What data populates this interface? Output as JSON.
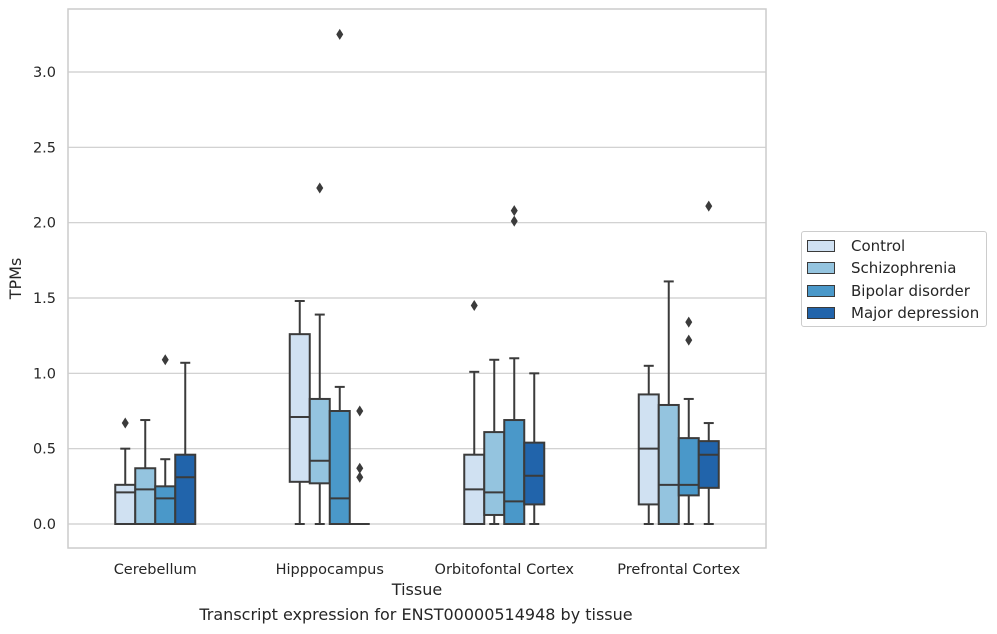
{
  "chart_data": {
    "type": "box",
    "xlabel": "Tissue",
    "ylabel": "TPMs",
    "caption": "Transcript expression for ENST00000514948 by tissue",
    "ylim": [
      -0.16,
      3.42
    ],
    "yticks": [
      0.0,
      0.5,
      1.0,
      1.5,
      2.0,
      2.5,
      3.0
    ],
    "ytick_labels": [
      "0.0",
      "0.5",
      "1.0",
      "1.5",
      "2.0",
      "2.5",
      "3.0"
    ],
    "grid": "horizontal",
    "legend_position": "right",
    "categories": [
      "Cerebellum",
      "Hipppocampus",
      "Orbitofontal Cortex",
      "Prefrontal Cortex"
    ],
    "series": [
      {
        "name": "Control",
        "color": "#d0e1f2",
        "boxes": [
          {
            "whisker_low": 0.0,
            "q1": 0.0,
            "median": 0.21,
            "q3": 0.26,
            "whisker_high": 0.5,
            "outliers": [
              0.67
            ]
          },
          {
            "whisker_low": 0.0,
            "q1": 0.28,
            "median": 0.71,
            "q3": 1.26,
            "whisker_high": 1.48,
            "outliers": []
          },
          {
            "whisker_low": 0.0,
            "q1": 0.0,
            "median": 0.23,
            "q3": 0.46,
            "whisker_high": 1.01,
            "outliers": [
              1.45
            ]
          },
          {
            "whisker_low": 0.0,
            "q1": 0.13,
            "median": 0.5,
            "q3": 0.86,
            "whisker_high": 1.05,
            "outliers": []
          }
        ]
      },
      {
        "name": "Schizophrenia",
        "color": "#94c4df",
        "boxes": [
          {
            "whisker_low": 0.0,
            "q1": 0.0,
            "median": 0.23,
            "q3": 0.37,
            "whisker_high": 0.69,
            "outliers": []
          },
          {
            "whisker_low": 0.0,
            "q1": 0.27,
            "median": 0.42,
            "q3": 0.83,
            "whisker_high": 1.39,
            "outliers": [
              2.23
            ]
          },
          {
            "whisker_low": 0.0,
            "q1": 0.06,
            "median": 0.21,
            "q3": 0.61,
            "whisker_high": 1.09,
            "outliers": []
          },
          {
            "whisker_low": 0.0,
            "q1": 0.0,
            "median": 0.26,
            "q3": 0.79,
            "whisker_high": 1.61,
            "outliers": []
          }
        ]
      },
      {
        "name": "Bipolar disorder",
        "color": "#4a98c9",
        "boxes": [
          {
            "whisker_low": 0.0,
            "q1": 0.0,
            "median": 0.17,
            "q3": 0.25,
            "whisker_high": 0.43,
            "outliers": [
              1.09
            ]
          },
          {
            "whisker_low": 0.0,
            "q1": 0.0,
            "median": 0.17,
            "q3": 0.75,
            "whisker_high": 0.91,
            "outliers": [
              3.25
            ]
          },
          {
            "whisker_low": 0.0,
            "q1": 0.0,
            "median": 0.15,
            "q3": 0.69,
            "whisker_high": 1.1,
            "outliers": [
              2.01,
              2.08
            ]
          },
          {
            "whisker_low": 0.0,
            "q1": 0.19,
            "median": 0.26,
            "q3": 0.57,
            "whisker_high": 0.83,
            "outliers": [
              1.22,
              1.34
            ]
          }
        ]
      },
      {
        "name": "Major depression",
        "color": "#2164ab",
        "boxes": [
          {
            "whisker_low": 0.0,
            "q1": 0.0,
            "median": 0.31,
            "q3": 0.46,
            "whisker_high": 1.07,
            "outliers": []
          },
          {
            "whisker_low": 0.0,
            "q1": 0.0,
            "median": 0.0,
            "q3": 0.0,
            "whisker_high": 0.0,
            "outliers": [
              0.31,
              0.37,
              0.75
            ]
          },
          {
            "whisker_low": 0.0,
            "q1": 0.13,
            "median": 0.32,
            "q3": 0.54,
            "whisker_high": 1.0,
            "outliers": []
          },
          {
            "whisker_low": 0.0,
            "q1": 0.24,
            "median": 0.46,
            "q3": 0.55,
            "whisker_high": 0.67,
            "outliers": [
              2.11
            ]
          }
        ]
      }
    ]
  }
}
